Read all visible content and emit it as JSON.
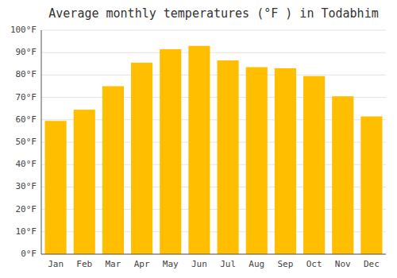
{
  "chart_data": {
    "type": "bar",
    "title": "Average monthly temperatures (°F ) in Todabhim",
    "categories": [
      "Jan",
      "Feb",
      "Mar",
      "Apr",
      "May",
      "Jun",
      "Jul",
      "Aug",
      "Sep",
      "Oct",
      "Nov",
      "Dec"
    ],
    "values": [
      59.5,
      64.5,
      75.0,
      85.5,
      91.5,
      93.0,
      86.5,
      83.5,
      83.0,
      79.5,
      70.5,
      61.5
    ],
    "color": "#FFBE00",
    "ylim": [
      0,
      100
    ],
    "yticks": [
      {
        "value": 0,
        "label": "0°F"
      },
      {
        "value": 10,
        "label": "10°F"
      },
      {
        "value": 20,
        "label": "20°F"
      },
      {
        "value": 30,
        "label": "30°F"
      },
      {
        "value": 40,
        "label": "40°F"
      },
      {
        "value": 50,
        "label": "50°F"
      },
      {
        "value": 60,
        "label": "60°F"
      },
      {
        "value": 70,
        "label": "70°F"
      },
      {
        "value": 80,
        "label": "80°F"
      },
      {
        "value": 90,
        "label": "90°F"
      },
      {
        "value": 100,
        "label": "100°F"
      }
    ],
    "grid": true
  }
}
